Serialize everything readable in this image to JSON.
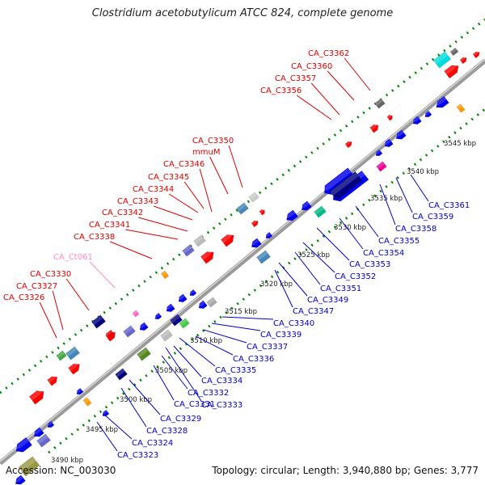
{
  "title": "Clostridium acetobutylicum ATCC 824, complete genome",
  "footer": {
    "accession": "Accession: NC_003030",
    "topology": "Topology: circular; Length: 3,940,880 bp; Genes: 3,777"
  },
  "colors": {
    "backbone": "#8a8a8a",
    "forward_label": "#dd0000",
    "reverse_label": "#0000cc",
    "rna_label": "#ff88cc",
    "forward_gene": "#ff0000",
    "reverse_gene": "#0000ee",
    "dot_track": "#008800"
  },
  "ticks": [
    "3490 kbp",
    "3495 kbp",
    "3500 kbp",
    "3505 kbp",
    "3510 kbp",
    "3515 kbp",
    "3520 kbp",
    "3525 kbp",
    "3530 kbp",
    "3535 kbp",
    "3540 kbp",
    "3545 kbp"
  ],
  "forward_labels": [
    "CA_C3326",
    "CA_C3327",
    "CA_C3330",
    "CA_Ct061",
    "CA_C3338",
    "CA_C3341",
    "CA_C3342",
    "CA_C3343",
    "CA_C3344",
    "CA_C3345",
    "CA_C3346",
    "mmuM",
    "CA_C3350",
    "CA_C3356",
    "CA_C3357",
    "CA_C3360",
    "CA_C3362"
  ],
  "reverse_labels": [
    "CA_C3323",
    "CA_C3324",
    "CA_C3328",
    "CA_C3329",
    "CA_C3331",
    "CA_C3332",
    "CA_C3333",
    "CA_C3334",
    "CA_C3335",
    "CA_C3336",
    "CA_C3337",
    "CA_C3339",
    "CA_C3340",
    "CA_C3347",
    "CA_C3349",
    "CA_C3351",
    "CA_C3352",
    "CA_C3353",
    "CA_C3354",
    "CA_C3355",
    "CA_C3358",
    "CA_C3359",
    "CA_C3361"
  ]
}
